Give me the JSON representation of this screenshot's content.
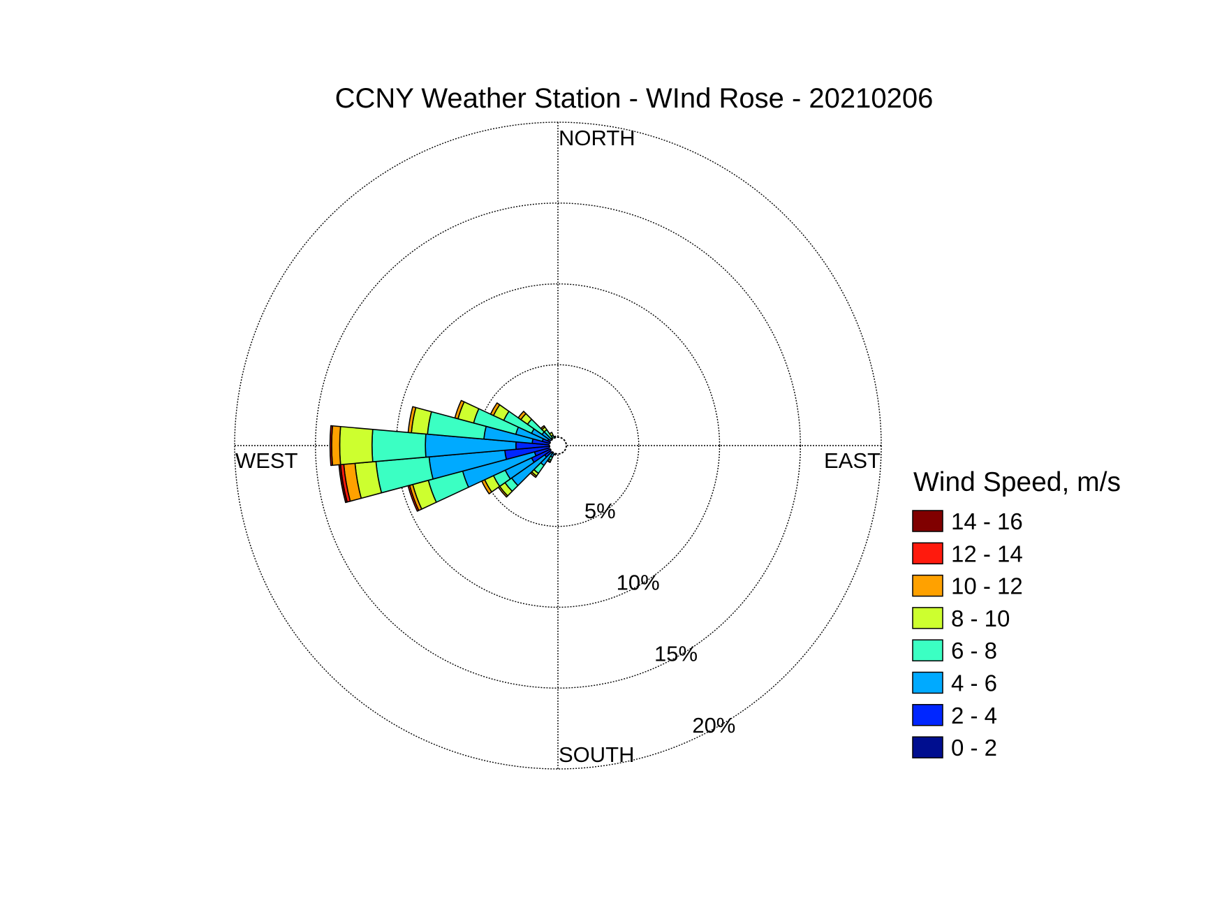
{
  "chart_data": {
    "type": "windrose",
    "title": "CCNY Weather Station - WInd Rose - 20210206",
    "direction_labels": {
      "north": "NORTH",
      "south": "SOUTH",
      "east": "EAST",
      "west": "WEST"
    },
    "rings": [
      {
        "value": 5,
        "label": "5%"
      },
      {
        "value": 10,
        "label": "10%"
      },
      {
        "value": 15,
        "label": "15%"
      },
      {
        "value": 20,
        "label": "20%"
      }
    ],
    "r_max": 20,
    "legend": {
      "title": "Wind Speed, m/s",
      "bins": [
        {
          "label": "14 - 16",
          "color": "#800000"
        },
        {
          "label": "12 - 14",
          "color": "#ff1a0d"
        },
        {
          "label": "10 - 12",
          "color": "#ffa100"
        },
        {
          "label": "8 - 10",
          "color": "#cdff2f"
        },
        {
          "label": "6 - 8",
          "color": "#3bffc3"
        },
        {
          "label": "4 - 6",
          "color": "#00aaff"
        },
        {
          "label": "2 - 4",
          "color": "#0026ff"
        },
        {
          "label": "0 - 2",
          "color": "#000e8f"
        }
      ]
    },
    "bin_order_inner_to_outer": [
      "0 - 2",
      "2 - 4",
      "4 - 6",
      "6 - 8",
      "8 - 10",
      "10 - 12",
      "12 - 14",
      "14 - 16"
    ],
    "sector_width_deg": 10,
    "sectors": [
      {
        "direction_deg": 200,
        "cumulative_percent": [
          0.1,
          0.2,
          0.4,
          0.5,
          0.6,
          0.6,
          0.6,
          0.6
        ]
      },
      {
        "direction_deg": 210,
        "cumulative_percent": [
          0.1,
          0.4,
          0.8,
          1.0,
          1.1,
          1.15,
          1.15,
          1.15
        ]
      },
      {
        "direction_deg": 220,
        "cumulative_percent": [
          0.2,
          0.6,
          1.5,
          2.1,
          2.3,
          2.4,
          2.4,
          2.4
        ]
      },
      {
        "direction_deg": 230,
        "cumulative_percent": [
          0.3,
          1.0,
          3.5,
          4.0,
          4.4,
          4.5,
          4.5,
          4.5
        ]
      },
      {
        "direction_deg": 240,
        "cumulative_percent": [
          0.4,
          1.8,
          3.6,
          4.4,
          5.0,
          5.2,
          5.2,
          5.2
        ]
      },
      {
        "direction_deg": 250,
        "cumulative_percent": [
          0.5,
          1.5,
          6.1,
          8.3,
          9.3,
          9.5,
          9.6,
          9.6
        ]
      },
      {
        "direction_deg": 260,
        "cumulative_percent": [
          0.5,
          3.3,
          8.0,
          11.3,
          12.6,
          13.3,
          13.5,
          13.6
        ]
      },
      {
        "direction_deg": 270,
        "cumulative_percent": [
          0.5,
          2.6,
          8.2,
          11.5,
          13.5,
          14.0,
          14.1,
          14.1
        ]
      },
      {
        "direction_deg": 280,
        "cumulative_percent": [
          0.4,
          1.6,
          4.6,
          8.1,
          9.1,
          9.3,
          9.3,
          9.3
        ]
      },
      {
        "direction_deg": 290,
        "cumulative_percent": [
          0.3,
          1.0,
          2.7,
          5.4,
          6.4,
          6.6,
          6.6,
          6.6
        ]
      },
      {
        "direction_deg": 300,
        "cumulative_percent": [
          0.2,
          0.7,
          1.8,
          3.7,
          4.4,
          4.6,
          4.6,
          4.6
        ]
      },
      {
        "direction_deg": 310,
        "cumulative_percent": [
          0.2,
          0.5,
          1.2,
          2.3,
          2.8,
          3.0,
          3.0,
          3.0
        ]
      },
      {
        "direction_deg": 320,
        "cumulative_percent": [
          0.1,
          0.3,
          0.6,
          1.2,
          1.4,
          1.5,
          1.5,
          1.5
        ]
      },
      {
        "direction_deg": 330,
        "cumulative_percent": [
          0.1,
          0.2,
          0.4,
          0.7,
          0.9,
          0.9,
          0.9,
          0.9
        ]
      },
      {
        "direction_deg": 340,
        "cumulative_percent": [
          0.1,
          0.2,
          0.3,
          0.5,
          0.6,
          0.6,
          0.6,
          0.6
        ]
      },
      {
        "direction_deg": 350,
        "cumulative_percent": [
          0.1,
          0.1,
          0.2,
          0.35,
          0.4,
          0.4,
          0.4,
          0.4
        ]
      },
      {
        "direction_deg": 190,
        "cumulative_percent": [
          0.1,
          0.15,
          0.25,
          0.35,
          0.4,
          0.4,
          0.4,
          0.4
        ]
      }
    ]
  }
}
